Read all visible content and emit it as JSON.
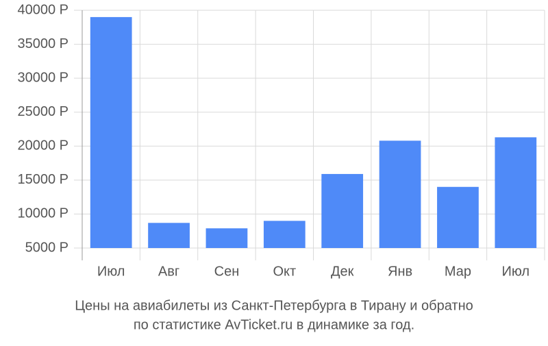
{
  "chart_data": {
    "type": "bar",
    "caption_lines": [
      "Цены на авиабилеты из Санкт-Петербурга в Тирану и обратно",
      "по статистике AvTicket.ru в динамике за год."
    ],
    "categories": [
      "Июл",
      "Авг",
      "Сен",
      "Окт",
      "Дек",
      "Янв",
      "Мар",
      "Июл"
    ],
    "values": [
      39000,
      8700,
      7900,
      9000,
      15900,
      20800,
      14000,
      21300
    ],
    "color": "#4f8af8",
    "ylim": [
      5000,
      40000
    ],
    "yticks": [
      {
        "value": 5000,
        "label": "5000 Р"
      },
      {
        "value": 10000,
        "label": "10000 Р"
      },
      {
        "value": 15000,
        "label": "15000 Р"
      },
      {
        "value": 20000,
        "label": "20000 Р"
      },
      {
        "value": 25000,
        "label": "25000 Р"
      },
      {
        "value": 30000,
        "label": "30000 Р"
      },
      {
        "value": 35000,
        "label": "35000 Р"
      },
      {
        "value": 40000,
        "label": "40000 Р"
      }
    ],
    "grid": true
  }
}
